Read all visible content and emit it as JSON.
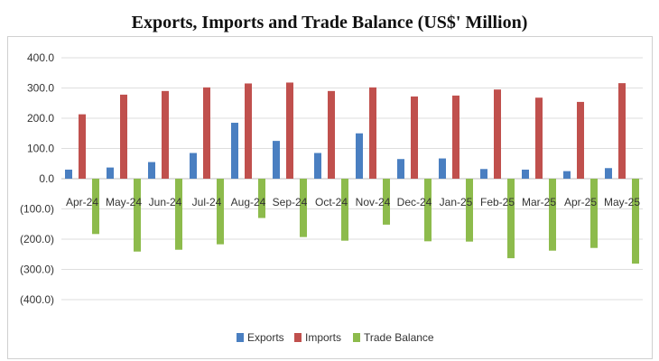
{
  "chart_data": {
    "type": "bar",
    "title": "Exports, Imports and Trade Balance (US$' Million)",
    "categories": [
      "Apr-24",
      "May-24",
      "Jun-24",
      "Jul-24",
      "Aug-24",
      "Sep-24",
      "Oct-24",
      "Nov-24",
      "Dec-24",
      "Jan-25",
      "Feb-25",
      "Mar-25",
      "Apr-25",
      "May-25"
    ],
    "series": [
      {
        "name": "Exports",
        "color": "#4a7fc1",
        "values": [
          30,
          37,
          55,
          85,
          185,
          125,
          85,
          150,
          65,
          67,
          32,
          30,
          25,
          35
        ]
      },
      {
        "name": "Imports",
        "color": "#c0504d",
        "values": [
          213,
          278,
          290,
          302,
          315,
          318,
          290,
          302,
          272,
          275,
          295,
          268,
          254,
          316
        ]
      },
      {
        "name": "Trade Balance",
        "color": "#8dbb4c",
        "values": [
          -183,
          -241,
          -235,
          -217,
          -130,
          -193,
          -205,
          -152,
          -207,
          -208,
          -263,
          -238,
          -229,
          -281
        ]
      }
    ],
    "ylim": [
      -400,
      400
    ],
    "yticks": [
      400,
      300,
      200,
      100,
      0,
      -100,
      -200,
      -300,
      -400
    ],
    "ytick_labels": [
      "400.0",
      "300.0",
      "200.0",
      "100.0",
      "0.0",
      "(100.0)",
      "(200.0)",
      "(300.0)",
      "(400.0)"
    ],
    "grid": true,
    "legend_position": "bottom"
  }
}
